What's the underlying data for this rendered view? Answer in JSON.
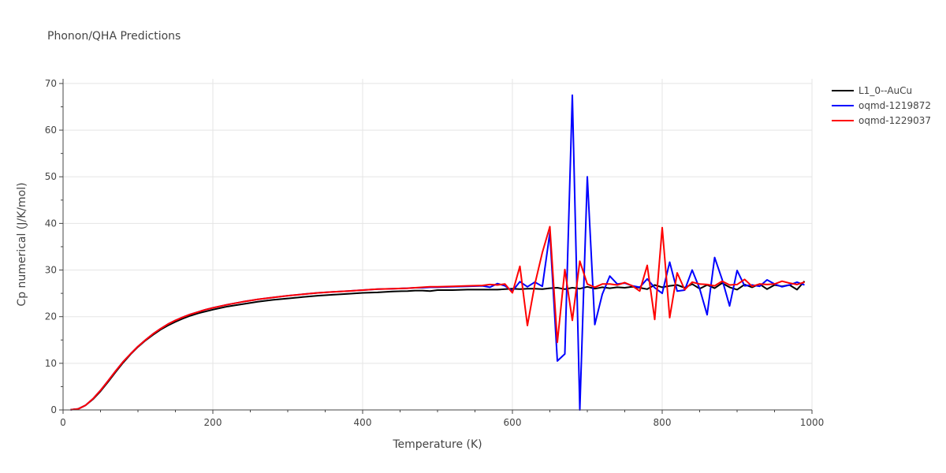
{
  "chart_data": {
    "type": "line",
    "title": "Phonon/QHA Predictions",
    "xlabel": "Temperature (K)",
    "ylabel": "Cp numerical (J/K/mol)",
    "xlim": [
      0,
      1000
    ],
    "ylim": [
      0,
      71
    ],
    "xticks": [
      0,
      200,
      400,
      600,
      800,
      1000
    ],
    "yticks": [
      0,
      10,
      20,
      30,
      40,
      50,
      60,
      70
    ],
    "grid": true,
    "legend_position": "top-right",
    "series": [
      {
        "name": "L1_0--AuCu",
        "color": "#000000",
        "x": [
          10,
          20,
          30,
          40,
          50,
          60,
          70,
          80,
          90,
          100,
          110,
          120,
          130,
          140,
          150,
          160,
          170,
          180,
          190,
          200,
          220,
          240,
          260,
          280,
          300,
          320,
          340,
          360,
          380,
          400,
          420,
          440,
          460,
          470,
          480,
          490,
          500,
          520,
          540,
          560,
          580,
          590,
          600,
          610,
          620,
          630,
          640,
          650,
          660,
          670,
          680,
          690,
          700,
          710,
          720,
          730,
          740,
          750,
          760,
          770,
          780,
          790,
          800,
          810,
          820,
          830,
          840,
          850,
          860,
          870,
          880,
          890,
          900,
          910,
          920,
          930,
          940,
          950,
          960,
          970,
          980,
          990
        ],
        "y": [
          0.05,
          0.2,
          1.0,
          2.3,
          4.0,
          6.0,
          8.1,
          10.1,
          11.9,
          13.5,
          14.9,
          16.1,
          17.2,
          18.1,
          18.9,
          19.6,
          20.2,
          20.7,
          21.1,
          21.5,
          22.2,
          22.7,
          23.2,
          23.6,
          23.9,
          24.2,
          24.5,
          24.7,
          24.9,
          25.1,
          25.2,
          25.4,
          25.5,
          25.6,
          25.6,
          25.5,
          25.7,
          25.7,
          25.8,
          25.8,
          25.8,
          25.9,
          26.0,
          25.9,
          26.0,
          26.0,
          25.9,
          26.1,
          26.2,
          25.9,
          26.2,
          26.0,
          26.4,
          26.0,
          26.3,
          26.1,
          26.3,
          26.2,
          26.4,
          26.2,
          25.9,
          26.8,
          26.3,
          26.6,
          26.8,
          26.2,
          27.0,
          26.0,
          26.8,
          26.1,
          27.2,
          26.3,
          25.8,
          26.9,
          26.3,
          27.0,
          25.9,
          26.8,
          26.5,
          26.8,
          25.8,
          27.6
        ]
      },
      {
        "name": "oqmd-1219872",
        "color": "#0000ff",
        "x": [
          10,
          20,
          30,
          40,
          50,
          60,
          70,
          80,
          90,
          100,
          110,
          120,
          130,
          140,
          150,
          160,
          170,
          180,
          190,
          200,
          220,
          240,
          260,
          280,
          300,
          320,
          340,
          360,
          380,
          400,
          420,
          440,
          460,
          470,
          480,
          490,
          500,
          520,
          540,
          560,
          570,
          580,
          590,
          600,
          610,
          620,
          630,
          640,
          650,
          660,
          670,
          680,
          690,
          700,
          710,
          720,
          730,
          740,
          750,
          760,
          770,
          780,
          790,
          800,
          810,
          820,
          830,
          840,
          850,
          860,
          870,
          880,
          890,
          900,
          910,
          920,
          930,
          940,
          950,
          960,
          970,
          980,
          990
        ],
        "y": [
          0.05,
          0.2,
          1.0,
          2.4,
          4.2,
          6.2,
          8.3,
          10.3,
          12.0,
          13.6,
          15.0,
          16.3,
          17.4,
          18.4,
          19.2,
          19.9,
          20.5,
          21.0,
          21.5,
          21.9,
          22.6,
          23.2,
          23.7,
          24.1,
          24.5,
          24.8,
          25.1,
          25.3,
          25.5,
          25.7,
          25.9,
          26.0,
          26.1,
          26.2,
          26.2,
          26.3,
          26.3,
          26.4,
          26.5,
          26.6,
          26.3,
          27.1,
          26.6,
          25.5,
          27.5,
          26.4,
          27.4,
          26.5,
          38.0,
          10.5,
          12.0,
          67.5,
          0.0,
          50.0,
          18.3,
          24.8,
          28.7,
          27.0,
          27.2,
          26.6,
          26.3,
          28.1,
          26.2,
          25.0,
          31.7,
          25.5,
          25.7,
          30.0,
          26.0,
          20.4,
          32.7,
          28.0,
          22.3,
          29.9,
          26.6,
          26.8,
          26.5,
          27.9,
          27.0,
          26.4,
          26.8,
          27.4,
          26.8
        ]
      },
      {
        "name": "oqmd-1229037",
        "color": "#ff0000",
        "x": [
          10,
          20,
          30,
          40,
          50,
          60,
          70,
          80,
          90,
          100,
          110,
          120,
          130,
          140,
          150,
          160,
          170,
          180,
          190,
          200,
          220,
          240,
          260,
          280,
          300,
          320,
          340,
          360,
          380,
          400,
          420,
          440,
          460,
          470,
          480,
          490,
          500,
          520,
          540,
          560,
          570,
          580,
          590,
          600,
          610,
          620,
          630,
          640,
          650,
          660,
          670,
          680,
          690,
          700,
          710,
          720,
          730,
          740,
          750,
          760,
          770,
          780,
          790,
          800,
          810,
          820,
          830,
          840,
          850,
          860,
          870,
          880,
          890,
          900,
          910,
          920,
          930,
          940,
          950,
          960,
          970,
          980,
          990
        ],
        "y": [
          0.05,
          0.2,
          1.0,
          2.4,
          4.2,
          6.2,
          8.3,
          10.3,
          12.0,
          13.6,
          15.0,
          16.3,
          17.4,
          18.4,
          19.2,
          19.9,
          20.5,
          21.0,
          21.5,
          21.9,
          22.6,
          23.2,
          23.7,
          24.1,
          24.5,
          24.8,
          25.1,
          25.3,
          25.5,
          25.7,
          25.9,
          26.0,
          26.1,
          26.2,
          26.3,
          26.4,
          26.4,
          26.5,
          26.6,
          26.7,
          26.9,
          26.8,
          27.0,
          25.1,
          30.8,
          18.1,
          27.0,
          33.8,
          39.3,
          14.5,
          30.1,
          19.2,
          31.9,
          27.0,
          26.3,
          27.0,
          27.0,
          26.8,
          27.3,
          26.6,
          25.5,
          31.0,
          19.4,
          39.1,
          19.8,
          29.4,
          25.8,
          27.4,
          27.0,
          26.9,
          26.6,
          27.6,
          26.8,
          26.9,
          28.0,
          26.5,
          27.0,
          26.9,
          27.0,
          27.6,
          27.2,
          26.9,
          27.4
        ]
      }
    ]
  }
}
